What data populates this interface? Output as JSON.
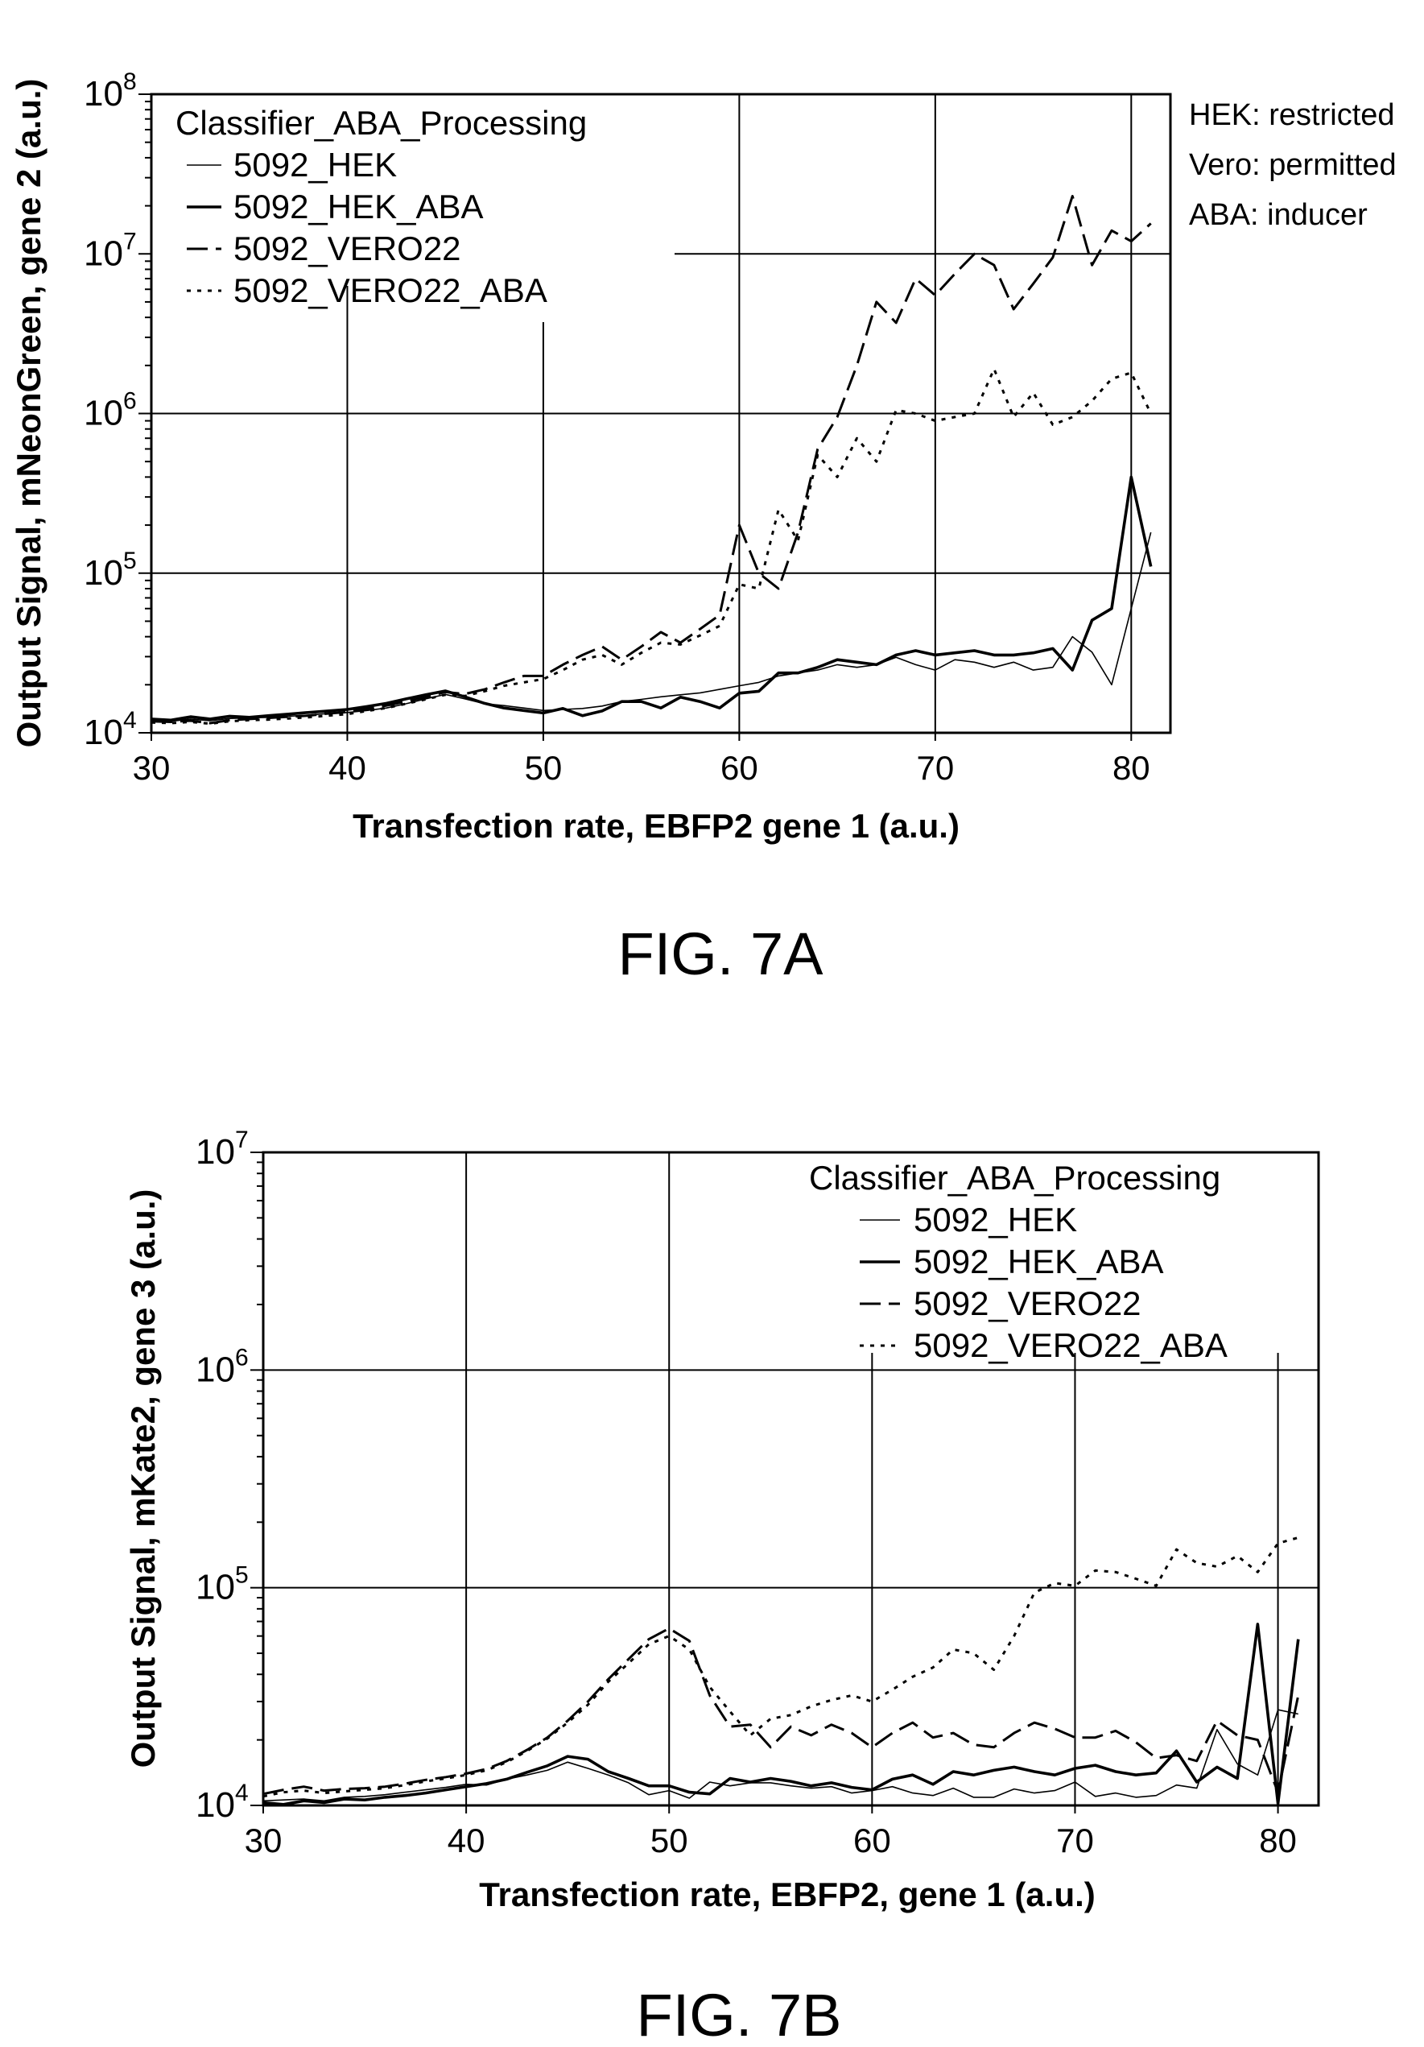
{
  "chart_data": [
    {
      "type": "line",
      "figure_label": "FIG. 7A",
      "xlabel": "Transfection rate, EBFP2 gene 1 (a.u.)",
      "ylabel": "Output Signal, mNeonGreen, gene 2 (a.u.)",
      "xlim": [
        30,
        82
      ],
      "ylim": [
        10000,
        100000000
      ],
      "yscale": "log",
      "x_ticks": [
        30,
        40,
        50,
        60,
        70,
        80
      ],
      "y_ticks": [
        4,
        5,
        6,
        7,
        8
      ],
      "grid": true,
      "legend": {
        "title": "Classifier_ABA_Processing",
        "placement": "top-left",
        "entries": [
          "5092_HEK",
          "5092_HEK_ABA",
          "5092_VERO22",
          "5092_VERO22_ABA"
        ]
      },
      "notes": [
        "HEK: restricted",
        "Vero: permitted",
        "ABA: inducer"
      ],
      "series": [
        {
          "name": "5092_HEK",
          "style": "thin",
          "x": [
            30,
            31,
            32,
            33,
            34,
            35,
            36,
            37,
            38,
            39,
            40,
            41,
            42,
            43,
            44,
            45,
            46,
            47,
            48,
            49,
            50,
            51,
            52,
            53,
            54,
            55,
            56,
            57,
            58,
            59,
            60,
            61,
            62,
            63,
            64,
            65,
            66,
            67,
            68,
            69,
            70,
            71,
            72,
            73,
            74,
            75,
            76,
            77,
            78,
            79,
            80,
            81
          ],
          "y": [
            12000,
            11800,
            12200,
            11900,
            12300,
            12400,
            12500,
            12700,
            12900,
            13200,
            13400,
            13800,
            14300,
            15200,
            16300,
            17400,
            16300,
            15200,
            14800,
            14300,
            13800,
            14000,
            14200,
            14700,
            15700,
            16200,
            16800,
            17300,
            17800,
            18700,
            19700,
            20700,
            22700,
            23700,
            24700,
            26700,
            25700,
            26700,
            29700,
            26700,
            24700,
            28700,
            27700,
            25700,
            27700,
            24700,
            25700,
            40000,
            32000,
            20000,
            60000,
            180000
          ]
        },
        {
          "name": "5092_HEK_ABA",
          "style": "thick",
          "x": [
            30,
            31,
            32,
            33,
            34,
            35,
            36,
            37,
            38,
            39,
            40,
            41,
            42,
            43,
            44,
            45,
            46,
            47,
            48,
            49,
            50,
            51,
            52,
            53,
            54,
            55,
            56,
            57,
            58,
            59,
            60,
            61,
            62,
            63,
            64,
            65,
            66,
            67,
            68,
            69,
            70,
            71,
            72,
            73,
            74,
            75,
            76,
            77,
            78,
            79,
            80,
            81
          ],
          "y": [
            12200,
            12000,
            12600,
            12200,
            12700,
            12500,
            12800,
            13100,
            13400,
            13700,
            14000,
            14600,
            15300,
            16300,
            17300,
            18300,
            16800,
            15300,
            14300,
            13800,
            13300,
            14200,
            12800,
            13700,
            15700,
            15700,
            14300,
            16700,
            15700,
            14300,
            17700,
            18200,
            23700,
            23700,
            25700,
            28700,
            27700,
            26700,
            30700,
            32700,
            30700,
            31700,
            32700,
            30700,
            30700,
            31700,
            33700,
            24700,
            50700,
            60000,
            400000,
            110000
          ]
        },
        {
          "name": "5092_VERO22",
          "style": "dashed",
          "x": [
            30,
            31,
            32,
            33,
            34,
            35,
            36,
            37,
            38,
            39,
            40,
            41,
            42,
            43,
            44,
            45,
            46,
            47,
            48,
            49,
            50,
            51,
            52,
            53,
            54,
            55,
            56,
            57,
            58,
            59,
            60,
            61,
            62,
            63,
            64,
            65,
            66,
            67,
            68,
            69,
            70,
            71,
            72,
            73,
            74,
            75,
            76,
            77,
            78,
            79,
            80,
            81
          ],
          "y": [
            11800,
            11700,
            11900,
            11500,
            12000,
            12200,
            12400,
            12600,
            12800,
            13200,
            13500,
            14100,
            14800,
            15700,
            16700,
            18000,
            17500,
            18700,
            20700,
            22700,
            22700,
            26700,
            30700,
            34700,
            28700,
            34700,
            42700,
            36700,
            44700,
            54700,
            200000,
            100000,
            80000,
            180000,
            600000,
            950000,
            2000000,
            5000000,
            3700000,
            7000000,
            5500000,
            7500000,
            10000000,
            8500000,
            4500000,
            6500000,
            9500000,
            23000000,
            8500000,
            14000000,
            12000000,
            15500000
          ]
        },
        {
          "name": "5092_VERO22_ABA",
          "style": "dotted",
          "x": [
            30,
            31,
            32,
            33,
            34,
            35,
            36,
            37,
            38,
            39,
            40,
            41,
            42,
            43,
            44,
            45,
            46,
            47,
            48,
            49,
            50,
            51,
            52,
            53,
            54,
            55,
            56,
            57,
            58,
            59,
            60,
            61,
            62,
            63,
            64,
            65,
            66,
            67,
            68,
            69,
            70,
            71,
            72,
            73,
            74,
            75,
            76,
            77,
            78,
            79,
            80,
            81
          ],
          "y": [
            11600,
            11500,
            11700,
            11400,
            11800,
            12000,
            12100,
            12300,
            12500,
            12800,
            13100,
            13700,
            14300,
            15200,
            16200,
            17300,
            17000,
            18200,
            19700,
            20700,
            21700,
            24700,
            28700,
            30700,
            26700,
            31700,
            36700,
            35700,
            40700,
            46700,
            85000,
            80000,
            250000,
            160000,
            550000,
            400000,
            700000,
            500000,
            1050000,
            1000000,
            900000,
            950000,
            1000000,
            1900000,
            950000,
            1350000,
            850000,
            950000,
            1200000,
            1650000,
            1800000,
            1000000
          ]
        }
      ]
    },
    {
      "type": "line",
      "figure_label": "FIG. 7B",
      "xlabel": "Transfection rate, EBFP2, gene 1 (a.u.)",
      "ylabel": "Output Signal, mKate2, gene 3 (a.u.)",
      "xlim": [
        30,
        82
      ],
      "ylim": [
        10000,
        10000000
      ],
      "yscale": "log",
      "x_ticks": [
        30,
        40,
        50,
        60,
        70,
        80
      ],
      "y_ticks": [
        4,
        5,
        6,
        7
      ],
      "grid": true,
      "legend": {
        "title": "Classifier_ABA_Processing",
        "placement": "top-right",
        "entries": [
          "5092_HEK",
          "5092_HEK_ABA",
          "5092_VERO22",
          "5092_VERO22_ABA"
        ]
      },
      "series": [
        {
          "name": "5092_HEK",
          "style": "thin",
          "x": [
            30,
            31,
            32,
            33,
            34,
            35,
            36,
            37,
            38,
            39,
            40,
            41,
            42,
            43,
            44,
            45,
            46,
            47,
            48,
            49,
            50,
            51,
            52,
            53,
            54,
            55,
            56,
            57,
            58,
            59,
            60,
            61,
            62,
            63,
            64,
            65,
            66,
            67,
            68,
            69,
            70,
            71,
            72,
            73,
            74,
            75,
            76,
            77,
            78,
            79,
            80,
            81
          ],
          "y": [
            10500,
            10600,
            10700,
            10500,
            10900,
            11000,
            11200,
            11500,
            11800,
            12100,
            12500,
            12400,
            13200,
            13800,
            14500,
            15800,
            14800,
            13800,
            12700,
            11200,
            11700,
            10800,
            12800,
            12300,
            12700,
            12700,
            12300,
            12000,
            12200,
            11400,
            11700,
            12200,
            11400,
            11100,
            12000,
            10900,
            10900,
            11900,
            11400,
            11700,
            12800,
            11000,
            11400,
            10900,
            11100,
            12400,
            12000,
            22300,
            15500,
            13800,
            27500,
            26300
          ]
        },
        {
          "name": "5092_HEK_ABA",
          "style": "thick",
          "x": [
            30,
            31,
            32,
            33,
            34,
            35,
            36,
            37,
            38,
            39,
            40,
            41,
            42,
            43,
            44,
            45,
            46,
            47,
            48,
            49,
            50,
            51,
            52,
            53,
            54,
            55,
            56,
            57,
            58,
            59,
            60,
            61,
            62,
            63,
            64,
            65,
            66,
            67,
            68,
            69,
            70,
            71,
            72,
            73,
            74,
            75,
            76,
            77,
            78,
            79,
            80,
            81
          ],
          "y": [
            10300,
            10100,
            10500,
            10300,
            10700,
            10600,
            10900,
            11100,
            11400,
            11800,
            12200,
            12600,
            13200,
            14200,
            15200,
            16800,
            16300,
            14300,
            13300,
            12300,
            12300,
            11500,
            11300,
            13300,
            12800,
            13300,
            12900,
            12300,
            12700,
            12100,
            11800,
            13200,
            13800,
            12500,
            14300,
            13800,
            14500,
            15000,
            14300,
            13800,
            14800,
            15300,
            14300,
            13800,
            14100,
            17800,
            12800,
            15000,
            13300,
            68000,
            10200,
            58000
          ]
        },
        {
          "name": "5092_VERO22",
          "style": "dashed",
          "x": [
            30,
            31,
            32,
            33,
            34,
            35,
            36,
            37,
            38,
            39,
            40,
            41,
            42,
            43,
            44,
            45,
            46,
            47,
            48,
            49,
            50,
            51,
            52,
            53,
            54,
            55,
            56,
            57,
            58,
            59,
            60,
            61,
            62,
            63,
            64,
            65,
            66,
            67,
            68,
            69,
            70,
            71,
            72,
            73,
            74,
            75,
            76,
            77,
            78,
            79,
            80,
            81
          ],
          "y": [
            11300,
            11800,
            12200,
            11700,
            11900,
            12000,
            12200,
            12600,
            13100,
            13500,
            14000,
            14700,
            16000,
            18000,
            20500,
            24500,
            30000,
            38000,
            47000,
            58000,
            65000,
            57000,
            32000,
            23000,
            23500,
            18500,
            23000,
            21000,
            23500,
            21500,
            18500,
            21500,
            24000,
            20500,
            21500,
            19000,
            18500,
            21500,
            24000,
            22500,
            20500,
            20500,
            22000,
            19500,
            16500,
            17000,
            16000,
            24500,
            21000,
            20000,
            11500,
            32000
          ]
        },
        {
          "name": "5092_VERO22_ABA",
          "style": "dotted",
          "x": [
            30,
            31,
            32,
            33,
            34,
            35,
            36,
            37,
            38,
            39,
            40,
            41,
            42,
            43,
            44,
            45,
            46,
            47,
            48,
            49,
            50,
            51,
            52,
            53,
            54,
            55,
            56,
            57,
            58,
            59,
            60,
            61,
            62,
            63,
            64,
            65,
            66,
            67,
            68,
            69,
            70,
            71,
            72,
            73,
            74,
            75,
            76,
            77,
            78,
            79,
            80,
            81
          ],
          "y": [
            11000,
            11500,
            11700,
            11400,
            11600,
            11800,
            12000,
            12400,
            12900,
            13300,
            13800,
            14500,
            15800,
            17800,
            20300,
            24000,
            29000,
            37000,
            45000,
            55000,
            60000,
            52000,
            35000,
            27000,
            21000,
            25000,
            26000,
            28500,
            30500,
            32000,
            30000,
            34000,
            39000,
            43000,
            52000,
            50000,
            42000,
            60000,
            95000,
            105000,
            102000,
            120000,
            118000,
            110000,
            102000,
            150000,
            130000,
            125000,
            140000,
            118000,
            160000,
            170000
          ]
        }
      ]
    }
  ]
}
